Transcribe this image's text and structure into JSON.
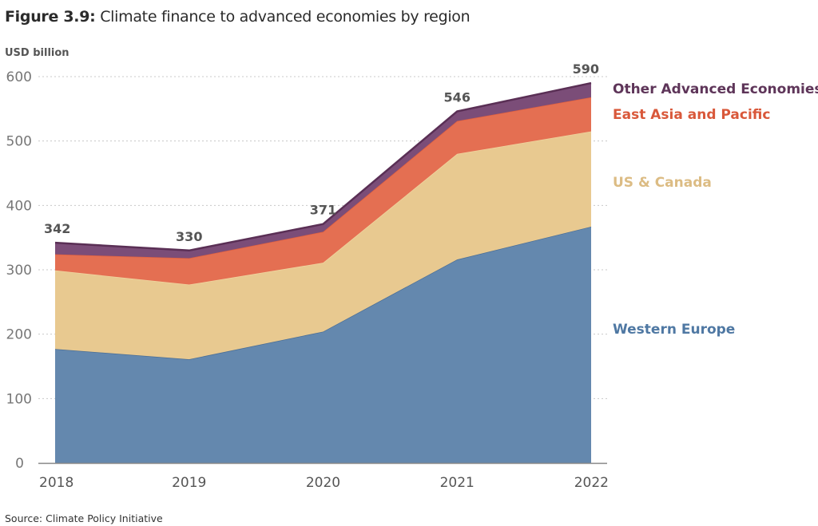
{
  "title_prefix": "Figure 3.9:",
  "title_text": " Climate finance to advanced economies by region",
  "unit_label": "USD billion",
  "source": "Source: Climate Policy Initiative",
  "chart_data": {
    "type": "area",
    "stacked": true,
    "title": "Figure 3.9: Climate finance to advanced economies by region",
    "xlabel": "",
    "ylabel": "USD billion",
    "x": [
      "2018",
      "2019",
      "2020",
      "2021",
      "2022"
    ],
    "ylim": [
      0,
      600
    ],
    "yticks": [
      0,
      100,
      200,
      300,
      400,
      500,
      600
    ],
    "grid": true,
    "legend_position": "right (inline labels)",
    "series": [
      {
        "name": "Western Europe",
        "color": "#6488ae",
        "values": [
          177,
          161,
          204,
          316,
          367
        ]
      },
      {
        "name": "US & Canada",
        "color": "#e8c990",
        "values": [
          122,
          116,
          107,
          164,
          148
        ]
      },
      {
        "name": "East Asia and Pacific",
        "color": "#e46f52",
        "values": [
          25,
          41,
          48,
          51,
          53
        ]
      },
      {
        "name": "Other Advanced Economies",
        "color": "#7b4d78",
        "values": [
          18,
          12,
          12,
          15,
          22
        ]
      }
    ],
    "totals": [
      342,
      330,
      371,
      546,
      590
    ],
    "legend_colors": {
      "Other Advanced Economies": "#5e3559",
      "East Asia and Pacific": "#d9583a",
      "US & Canada": "#dcbc84",
      "Western Europe": "#4f78a3"
    }
  }
}
